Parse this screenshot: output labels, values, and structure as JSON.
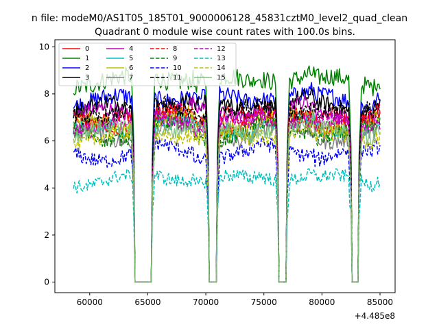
{
  "figure": {
    "suptitle": "n file: modeM0/AS1T05_185T01_9000006128_45831cztM0_level2_quad_clean",
    "offset_label": "+4.485e8"
  },
  "chart_data": {
    "type": "line",
    "title": "Quadrant 0 module wise count rates with 100.0s bins.",
    "xlabel": "",
    "ylabel": "",
    "x_offset": 448500000,
    "xlim": [
      57000,
      86300
    ],
    "ylim": [
      -0.45,
      10.3
    ],
    "xticks": [
      60000,
      65000,
      70000,
      75000,
      80000,
      85000
    ],
    "xtick_labels": [
      "60000",
      "65000",
      "70000",
      "75000",
      "80000",
      "85000"
    ],
    "yticks": [
      0,
      2,
      4,
      6,
      8,
      10
    ],
    "ytick_labels": [
      "0",
      "2",
      "4",
      "6",
      "8",
      "10"
    ],
    "grid": false,
    "legend": {
      "placement": "top-left",
      "columns": 4,
      "frame": true
    },
    "bin_size_s": 100,
    "x_range": [
      58600,
      85000
    ],
    "segments": [
      [
        58600,
        63600
      ],
      [
        65500,
        70200
      ],
      [
        71000,
        76200
      ],
      [
        77000,
        82400
      ],
      [
        83200,
        85000
      ]
    ],
    "gaps": [
      [
        63900,
        65300
      ],
      [
        70300,
        70900
      ],
      [
        76300,
        76900
      ],
      [
        82600,
        83100
      ]
    ],
    "approximate_levels": true,
    "series": [
      {
        "name": "0",
        "color": "#ff0000",
        "dash": "solid",
        "level": 7.0
      },
      {
        "name": "1",
        "color": "#008000",
        "dash": "solid",
        "level": 8.6
      },
      {
        "name": "2",
        "color": "#0000ff",
        "dash": "solid",
        "level": 7.8
      },
      {
        "name": "3",
        "color": "#000000",
        "dash": "solid",
        "level": 7.5
      },
      {
        "name": "4",
        "color": "#bf00bf",
        "dash": "solid",
        "level": 7.2
      },
      {
        "name": "5",
        "color": "#00bfbf",
        "dash": "solid",
        "level": 6.6
      },
      {
        "name": "6",
        "color": "#bfbf00",
        "dash": "solid",
        "level": 6.8
      },
      {
        "name": "7",
        "color": "#808080",
        "dash": "solid",
        "level": 6.3
      },
      {
        "name": "8",
        "color": "#ff0000",
        "dash": "dashed",
        "level": 6.9
      },
      {
        "name": "9",
        "color": "#008000",
        "dash": "dashed",
        "level": 6.4
      },
      {
        "name": "10",
        "color": "#0000ff",
        "dash": "dashed",
        "level": 5.5
      },
      {
        "name": "11",
        "color": "#000000",
        "dash": "dashed",
        "level": 7.3
      },
      {
        "name": "12",
        "color": "#bf00bf",
        "dash": "dashed",
        "level": 6.8
      },
      {
        "name": "13",
        "color": "#00bfbf",
        "dash": "dashed",
        "level": 4.4
      },
      {
        "name": "14",
        "color": "#bfbf00",
        "dash": "dashed",
        "level": 6.2
      },
      {
        "name": "15",
        "color": "#7fbf7f",
        "dash": "solid",
        "level": 6.5
      }
    ]
  }
}
